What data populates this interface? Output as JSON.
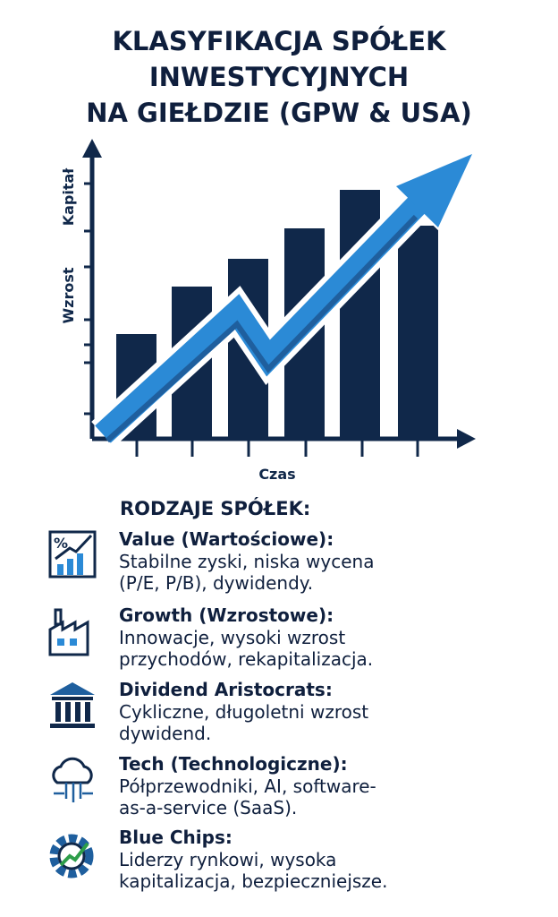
{
  "header": {
    "title_lines": [
      "KLASYFIKACJA SPÓŁEK",
      "INWESTYCYJNYCH",
      "NA GIEŁDZIE (GPW & USA)"
    ]
  },
  "illustration": {
    "y_label_top": "Kapitał",
    "y_label_bottom": "Wzrost",
    "x_label": "Czas"
  },
  "section": {
    "heading": "RODZAJE SPÓŁEK:",
    "items": [
      {
        "title": "Value (Wartościowe):",
        "lines": [
          "Stabilne zyski, niska wycena",
          "(P/E, P/B), dywidendy."
        ]
      },
      {
        "title": "Growth (Wzrostowe):",
        "lines": [
          "Innowacje, wysoki wzrost",
          "przychodów, rekapitalizacja."
        ]
      },
      {
        "title": "Dividend Aristocrats:",
        "lines": [
          "Cykliczne, długoletni wzrost",
          "dywidend."
        ]
      },
      {
        "title": "Tech (Technologiczne):",
        "lines": [
          "Półprzewodniki, AI, software-",
          "as-a-service (SaaS)."
        ]
      },
      {
        "title": "Blue Chips:",
        "lines": [
          "Liderzy rynkowi, wysoka",
          "kapitalizacja, bezpieczniejsze."
        ]
      }
    ]
  }
}
